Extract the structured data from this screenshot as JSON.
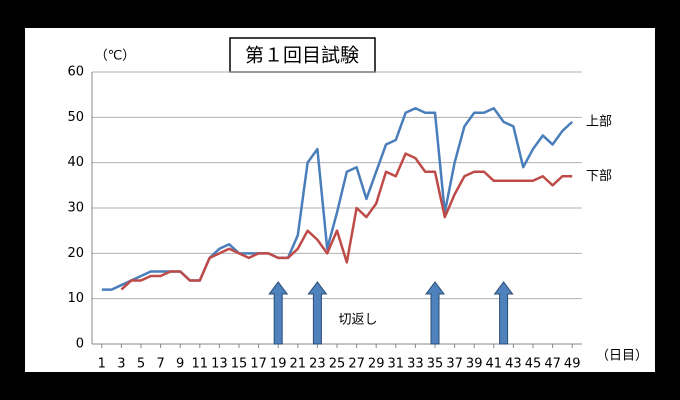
{
  "chart_data": {
    "type": "line",
    "title": "第１回目試験",
    "y_label": "（℃）",
    "x_label": "（日目）",
    "x": [
      1,
      2,
      3,
      4,
      5,
      6,
      7,
      8,
      9,
      10,
      11,
      12,
      13,
      14,
      15,
      16,
      17,
      18,
      19,
      20,
      21,
      22,
      23,
      24,
      25,
      26,
      27,
      28,
      29,
      30,
      31,
      32,
      33,
      34,
      35,
      36,
      37,
      38,
      39,
      40,
      41,
      42,
      43,
      44,
      45,
      46,
      47,
      48,
      49
    ],
    "series": [
      {
        "name": "上部",
        "color": "#4a7ebb",
        "values": [
          12,
          12,
          13,
          14,
          15,
          16,
          16,
          16,
          16,
          14,
          14,
          19,
          21,
          22,
          20,
          20,
          20,
          20,
          19,
          19,
          24,
          40,
          43,
          21,
          29,
          38,
          39,
          32,
          38,
          44,
          45,
          51,
          52,
          51,
          51,
          29,
          40,
          48,
          51,
          51,
          52,
          49,
          48,
          39,
          43,
          46,
          44,
          47,
          49
        ]
      },
      {
        "name": "下部",
        "color": "#be4b48",
        "values": [
          null,
          null,
          12,
          14,
          14,
          15,
          15,
          16,
          16,
          14,
          14,
          19,
          20,
          21,
          20,
          19,
          20,
          20,
          19,
          19,
          21,
          25,
          23,
          20,
          25,
          18,
          30,
          28,
          31,
          38,
          37,
          42,
          41,
          38,
          38,
          28,
          33,
          37,
          38,
          38,
          36,
          36,
          36,
          36,
          36,
          37,
          35,
          37,
          37
        ]
      }
    ],
    "xlim": [
      0,
      50
    ],
    "ylim": [
      0,
      60
    ],
    "xticks": [
      1,
      3,
      5,
      7,
      9,
      11,
      13,
      15,
      17,
      19,
      21,
      23,
      25,
      27,
      29,
      31,
      33,
      35,
      37,
      39,
      41,
      43,
      45,
      47,
      49
    ],
    "yticks": [
      0,
      10,
      20,
      30,
      40,
      50,
      60
    ],
    "grid": true,
    "annotation": {
      "text": "切返し",
      "x": [
        19,
        23,
        35,
        42
      ]
    }
  }
}
